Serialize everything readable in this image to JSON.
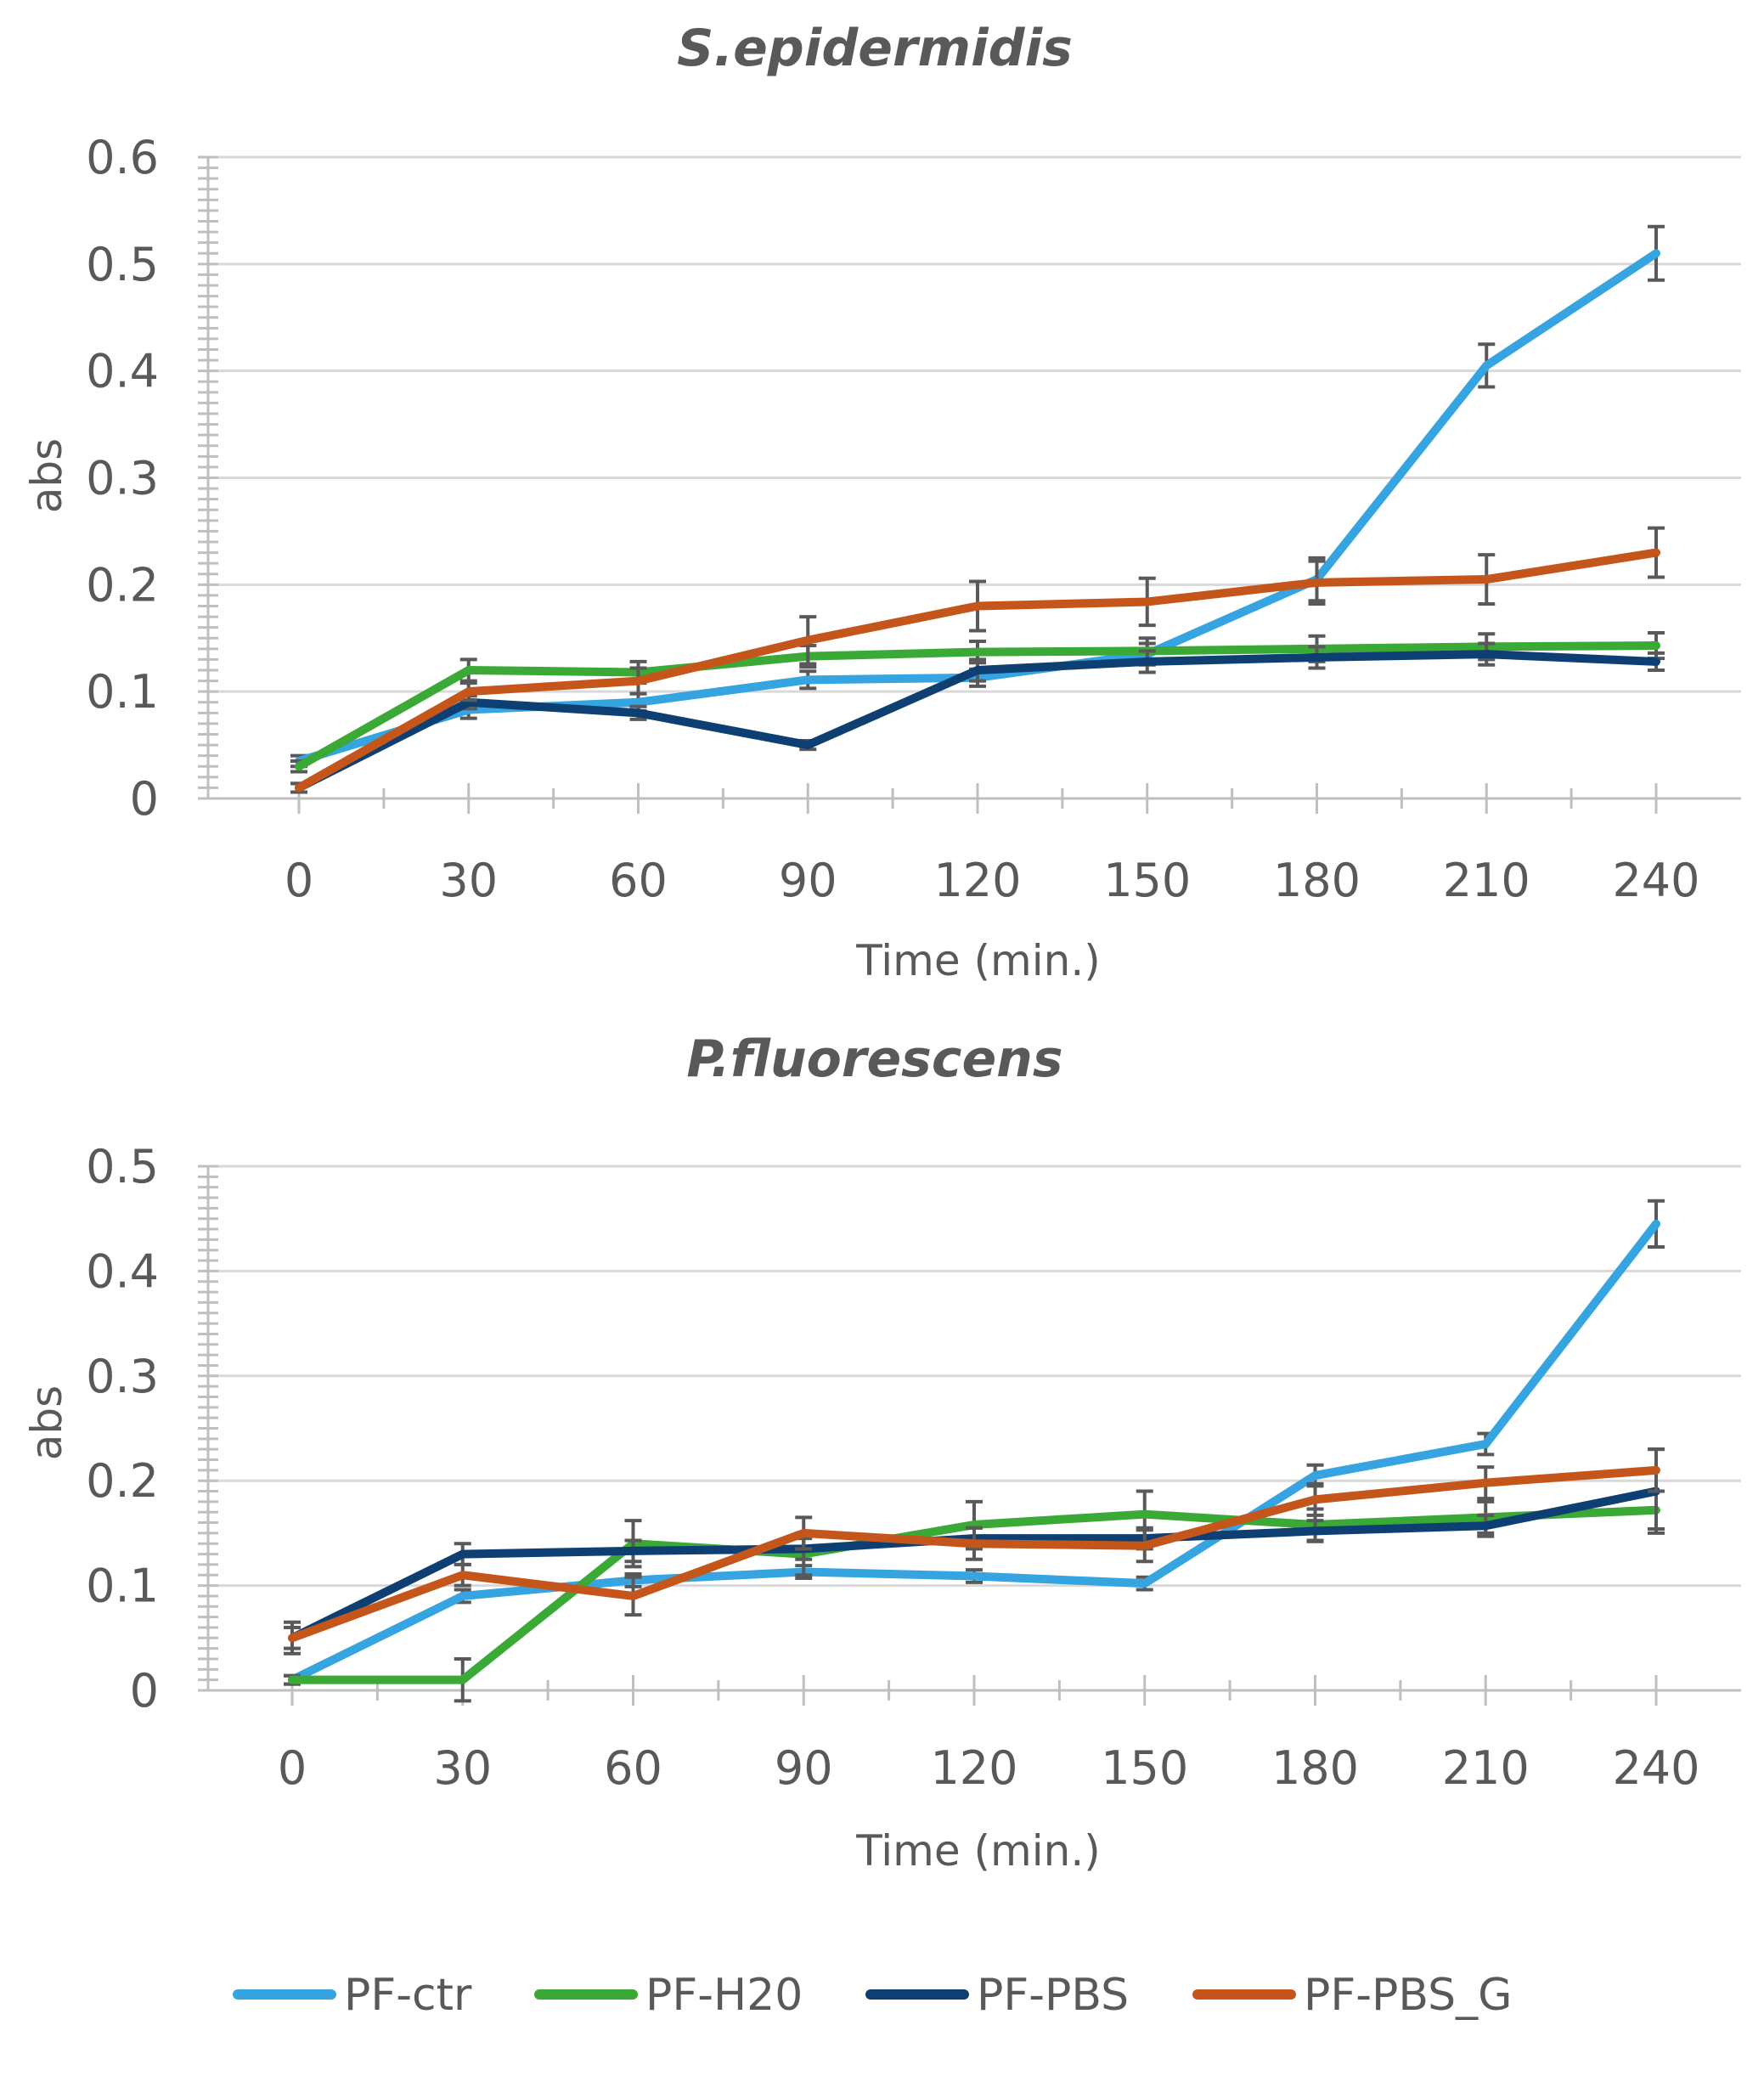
{
  "colors": {
    "PF-ctr": "#35a4e0",
    "PF-H20": "#3aa935",
    "PF-PBS": "#0e3f73",
    "PF-PBS_G": "#c4561c"
  },
  "legend": {
    "items": [
      {
        "name": "PF-ctr",
        "color": "#35a4e0"
      },
      {
        "name": "PF-H20",
        "color": "#3aa935"
      },
      {
        "name": "PF-PBS",
        "color": "#0e3f73"
      },
      {
        "name": "PF-PBS_G",
        "color": "#c4561c"
      }
    ]
  },
  "chart_data": [
    {
      "type": "line",
      "title": "S.epidermidis",
      "xlabel": "Time (min.)",
      "ylabel": "abs",
      "x": [
        0,
        30,
        60,
        90,
        120,
        150,
        180,
        210,
        240
      ],
      "ylim": [
        0,
        0.6
      ],
      "yticks": [
        0,
        0.1,
        0.2,
        0.3,
        0.4,
        0.5,
        0.6
      ],
      "ytick_labels": [
        "0",
        "0.1",
        "0.2",
        "0.3",
        "0.4",
        "0.5",
        "0.6"
      ],
      "xtick_labels": [
        "0",
        "30",
        "60",
        "90",
        "120",
        "150",
        "180",
        "210",
        "240"
      ],
      "grid": true,
      "series": [
        {
          "name": "PF-ctr",
          "values": [
            0.035,
            0.083,
            0.09,
            0.111,
            0.113,
            0.135,
            0.205,
            0.405,
            0.51
          ],
          "errors": [
            0.005,
            0.008,
            0.008,
            0.008,
            0.008,
            0.01,
            0.02,
            0.02,
            0.025
          ]
        },
        {
          "name": "PF-H20",
          "values": [
            0.03,
            0.12,
            0.118,
            0.133,
            0.137,
            0.138,
            0.14,
            0.142,
            0.143
          ],
          "errors": [
            0.005,
            0.01,
            0.01,
            0.01,
            0.01,
            0.012,
            0.012,
            0.012,
            0.012
          ]
        },
        {
          "name": "PF-PBS",
          "values": [
            0.01,
            0.09,
            0.08,
            0.05,
            0.12,
            0.128,
            0.132,
            0.135,
            0.128
          ],
          "errors": [
            0.004,
            0.006,
            0.006,
            0.004,
            0.01,
            0.01,
            0.01,
            0.01,
            0.008
          ]
        },
        {
          "name": "PF-PBS_G",
          "values": [
            0.01,
            0.1,
            0.11,
            0.148,
            0.18,
            0.184,
            0.202,
            0.205,
            0.23
          ],
          "errors": [
            0.004,
            0.008,
            0.012,
            0.022,
            0.023,
            0.022,
            0.02,
            0.023,
            0.023
          ]
        }
      ]
    },
    {
      "type": "line",
      "title": "P.fluorescens",
      "xlabel": "Time (min.)",
      "ylabel": "abs",
      "x": [
        0,
        30,
        60,
        90,
        120,
        150,
        180,
        210,
        240
      ],
      "ylim": [
        0,
        0.5
      ],
      "yticks": [
        0,
        0.1,
        0.2,
        0.3,
        0.4,
        0.5
      ],
      "ytick_labels": [
        "0",
        "0.1",
        "0.2",
        "0.3",
        "0.4",
        "0.5"
      ],
      "xtick_labels": [
        "0",
        "30",
        "60",
        "90",
        "120",
        "150",
        "180",
        "210",
        "240"
      ],
      "grid": true,
      "series": [
        {
          "name": "PF-ctr",
          "values": [
            0.01,
            0.09,
            0.105,
            0.113,
            0.109,
            0.102,
            0.205,
            0.235,
            0.445
          ],
          "errors": [
            0.004,
            0.006,
            0.006,
            0.006,
            0.006,
            0.006,
            0.01,
            0.01,
            0.022
          ]
        },
        {
          "name": "PF-H20",
          "values": [
            0.01,
            0.01,
            0.14,
            0.13,
            0.158,
            0.168,
            0.158,
            0.165,
            0.172
          ],
          "errors": [
            0.004,
            0.02,
            0.022,
            0.02,
            0.022,
            0.022,
            0.015,
            0.015,
            0.018
          ]
        },
        {
          "name": "PF-PBS",
          "values": [
            0.05,
            0.13,
            0.133,
            0.135,
            0.145,
            0.145,
            0.152,
            0.157,
            0.19
          ],
          "errors": [
            0.015,
            0.01,
            0.01,
            0.01,
            0.01,
            0.01,
            0.01,
            0.01,
            0.04
          ]
        },
        {
          "name": "PF-PBS_G",
          "values": [
            0.05,
            0.11,
            0.09,
            0.15,
            0.14,
            0.138,
            0.182,
            0.198,
            0.21
          ],
          "errors": [
            0.01,
            0.01,
            0.018,
            0.015,
            0.015,
            0.015,
            0.015,
            0.015,
            0.02
          ]
        }
      ]
    }
  ]
}
